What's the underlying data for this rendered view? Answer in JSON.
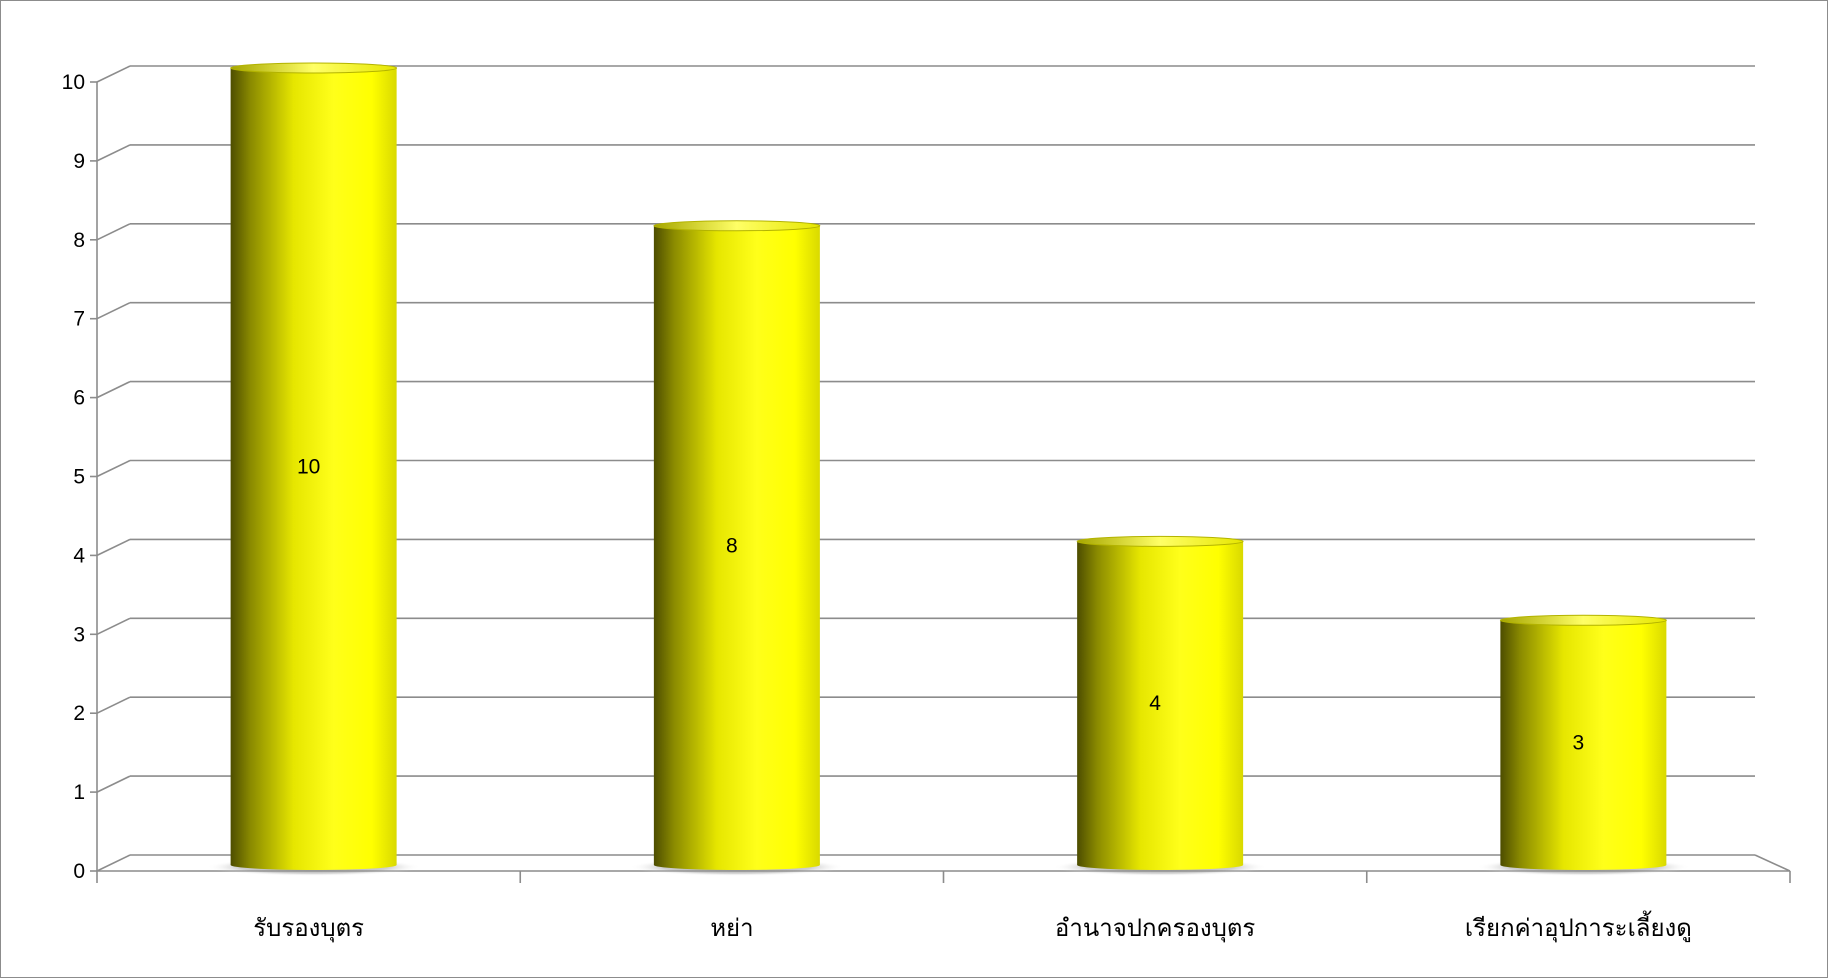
{
  "chart_data": {
    "type": "bar",
    "categories": [
      "รับรองบุตร",
      "หย่า",
      "อำนาจปกครองบุตร",
      "เรียกค่าอุปการะเลี้ยงดู"
    ],
    "values": [
      10,
      8,
      4,
      3
    ],
    "data_labels": [
      "10",
      "8",
      "4",
      "3"
    ],
    "title": "",
    "xlabel": "",
    "ylabel": "",
    "ylim": [
      0,
      10
    ],
    "yticks": [
      0,
      1,
      2,
      3,
      4,
      5,
      6,
      7,
      8,
      9,
      10
    ],
    "grid": true,
    "legend": "none",
    "style": "3d-cylinder",
    "colors": {
      "bar_light": "#ffff00",
      "bar_mid": "#e6e600",
      "bar_dark": "#5a5a00",
      "gridline": "#8c8c8c",
      "axis": "#8c8c8c",
      "shadow": "#9a9a9a"
    }
  }
}
